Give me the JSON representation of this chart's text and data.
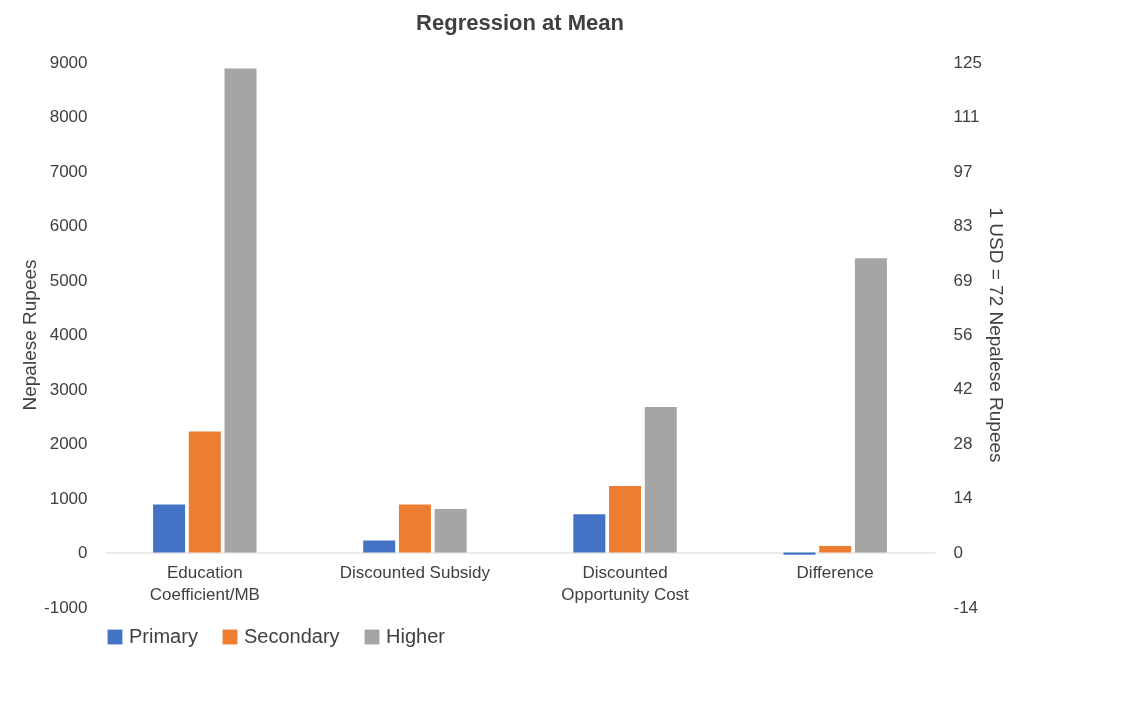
{
  "chart_data": {
    "type": "bar",
    "title": "Regression at Mean",
    "ylabel": "Nepalese Rupees",
    "y2label": "1 USD = 72 Nepalese Rupees",
    "categories": [
      "Education Coefficient/MB",
      "Discounted Subsidy",
      "Discounted Opportunity Cost",
      "Difference"
    ],
    "series": [
      {
        "name": "Primary",
        "color": "#4472c4",
        "values": [
          880,
          220,
          700,
          -40
        ]
      },
      {
        "name": "Secondary",
        "color": "#ed7d31",
        "values": [
          2220,
          880,
          1220,
          120
        ]
      },
      {
        "name": "Higher",
        "color": "#a5a5a5",
        "values": [
          8880,
          800,
          2670,
          5400
        ]
      }
    ],
    "ylim": [
      -1000,
      9000
    ],
    "yticks": [
      -1000,
      0,
      1000,
      2000,
      3000,
      4000,
      5000,
      6000,
      7000,
      8000,
      9000
    ],
    "y2lim": [
      -13.9,
      125
    ],
    "y2ticks": [
      {
        "value": -13.9,
        "label": "-14"
      },
      0,
      {
        "value": 13.9,
        "label": "14"
      },
      {
        "value": 27.8,
        "label": "28"
      },
      {
        "value": 41.7,
        "label": "42"
      },
      {
        "value": 55.6,
        "label": "56"
      },
      {
        "value": 69.4,
        "label": "69"
      },
      {
        "value": 83.3,
        "label": "83"
      },
      {
        "value": 97.2,
        "label": "97"
      },
      {
        "value": 111.1,
        "label": "111"
      },
      125
    ],
    "grid": false,
    "legend": "bottom"
  }
}
